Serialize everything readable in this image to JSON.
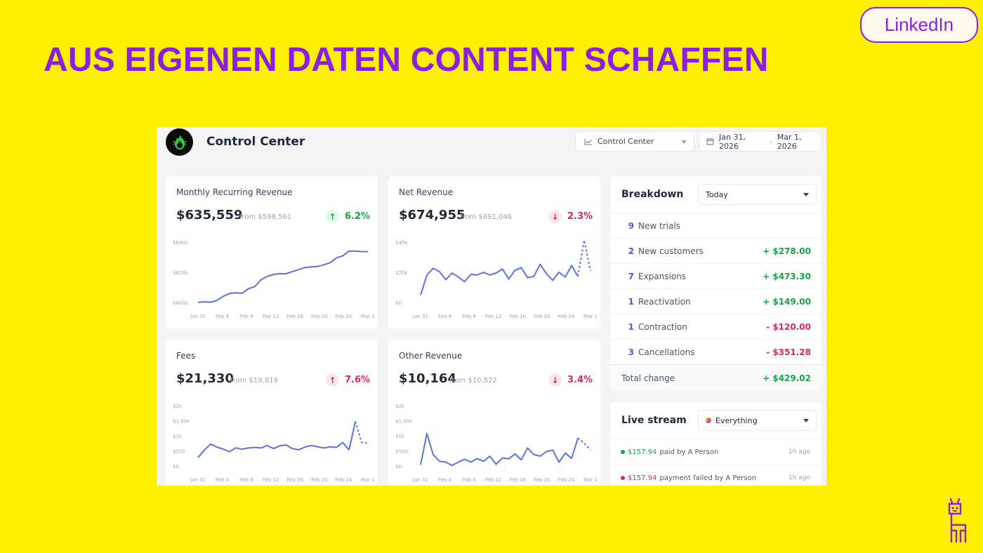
{
  "slide": {
    "title": "AUS EIGENEN DATEN CONTENT SCHAFFEN",
    "linkedin_label": "LinkedIn"
  },
  "colors": {
    "background": "#FFF000",
    "accent_purple": "#8A1FE0",
    "positive": "#16A34A",
    "negative": "#DB2760",
    "line": "#5B72E0"
  },
  "icons": [
    "fire-logo-icon",
    "chart-line-icon",
    "calendar-icon",
    "chevron-down-icon",
    "llama-icon",
    "pie-dot-icon"
  ],
  "dashboard": {
    "title": "Control Center",
    "report_select": "Control Center",
    "date_from": "Jan 31, 2026",
    "date_separator": "–",
    "date_to": "Mar 1, 2026"
  },
  "cards": [
    {
      "id": "mrr",
      "label": "Monthly Recurring Revenue",
      "value": "$635,559",
      "from": "from $598,561",
      "change": "6.2%",
      "direction": "up",
      "chart_data": {
        "type": "line",
        "x_ticks": [
          "Jan 31",
          "Feb 4",
          "Feb 8",
          "Feb 12",
          "Feb 16",
          "Feb 20",
          "Feb 24",
          "Mar 1"
        ],
        "y_ticks": [
          "$600k",
          "$620k",
          "$640k"
        ],
        "ylim": [
          598000,
          642000
        ],
        "y": [
          598500,
          599000,
          598700,
          600000,
          603000,
          605000,
          605500,
          605200,
          608500,
          610000,
          615000,
          617500,
          619000,
          619500,
          619500,
          621000,
          622500,
          624000,
          624500,
          624700,
          626000,
          627500,
          631000,
          632500,
          636000,
          636000,
          635600,
          635559
        ],
        "dashed_tail": 0
      }
    },
    {
      "id": "net_revenue",
      "label": "Net Revenue",
      "value": "$674,955",
      "from": "from $691,046",
      "change": "2.3%",
      "direction": "down",
      "chart_data": {
        "type": "line",
        "x_ticks": [
          "Jan 31",
          "Feb 4",
          "Feb 8",
          "Feb 12",
          "Feb 16",
          "Feb 20",
          "Feb 24",
          "Mar 1"
        ],
        "y_ticks": [
          "$0",
          "$20k",
          "$40k"
        ],
        "ylim": [
          0,
          45000
        ],
        "y": [
          6000,
          21000,
          26000,
          23500,
          17500,
          22500,
          19500,
          16000,
          21500,
          21000,
          23000,
          21000,
          22500,
          25500,
          18000,
          24500,
          26500,
          19000,
          20000,
          29000,
          22000,
          17000,
          23000,
          19500,
          28000,
          20000,
          47000,
          24000
        ],
        "dashed_tail": 2
      }
    },
    {
      "id": "fees",
      "label": "Fees",
      "value": "$21,330",
      "from": "from $19,819",
      "change": "7.6%",
      "direction": "up",
      "chart_data": {
        "type": "line",
        "x_ticks": [
          "Jan 31",
          "Feb 4",
          "Feb 8",
          "Feb 12",
          "Feb 16",
          "Feb 20",
          "Feb 24",
          "Mar 1"
        ],
        "y_ticks": [
          "$0",
          "$500",
          "$1k",
          "$1,50k",
          "$2k"
        ],
        "ylim": [
          0,
          2000
        ],
        "y": [
          300,
          550,
          750,
          650,
          580,
          500,
          620,
          580,
          620,
          640,
          620,
          700,
          600,
          690,
          720,
          600,
          560,
          650,
          700,
          660,
          620,
          660,
          640,
          800,
          560,
          1500,
          800,
          780
        ],
        "dashed_tail": 2
      }
    },
    {
      "id": "other_revenue",
      "label": "Other Revenue",
      "value": "$10,164",
      "from": "from $10,522",
      "change": "3.4%",
      "direction": "down",
      "chart_data": {
        "type": "line",
        "x_ticks": [
          "Jan 31",
          "Feb 4",
          "Feb 8",
          "Feb 12",
          "Feb 16",
          "Feb 20",
          "Feb 24",
          "Mar 1"
        ],
        "y_ticks": [
          "$0",
          "$500",
          "$1k",
          "$1,50k",
          "$2k"
        ],
        "ylim": [
          0,
          2000
        ],
        "y": [
          60,
          1100,
          400,
          180,
          150,
          40,
          150,
          250,
          150,
          270,
          180,
          350,
          80,
          290,
          260,
          420,
          230,
          620,
          400,
          350,
          500,
          550,
          150,
          450,
          280,
          950,
          780,
          550
        ],
        "dashed_tail": 2
      }
    }
  ],
  "breakdown": {
    "title": "Breakdown",
    "period": "Today",
    "rows": [
      {
        "count": "9",
        "label": "New trials",
        "amount": "",
        "sign": "pos"
      },
      {
        "count": "2",
        "label": "New customers",
        "amount": "+ $278.00",
        "sign": "pos"
      },
      {
        "count": "7",
        "label": "Expansions",
        "amount": "+ $473.30",
        "sign": "pos"
      },
      {
        "count": "1",
        "label": "Reactivation",
        "amount": "+ $149.00",
        "sign": "pos"
      },
      {
        "count": "1",
        "label": "Contraction",
        "amount": "- $120.00",
        "sign": "neg"
      },
      {
        "count": "3",
        "label": "Cancellations",
        "amount": "- $351.28",
        "sign": "neg"
      }
    ],
    "total_label": "Total change",
    "total_amount": "+ $429.02"
  },
  "live_stream": {
    "title": "Live stream",
    "filter": "Everything",
    "events": [
      {
        "amount": "$157.94",
        "text": "paid by A Person",
        "time": "1h ago",
        "status": "success"
      },
      {
        "amount": "$157.94",
        "text": "payment failed by A Person",
        "time": "1h ago",
        "status": "failed"
      }
    ]
  }
}
